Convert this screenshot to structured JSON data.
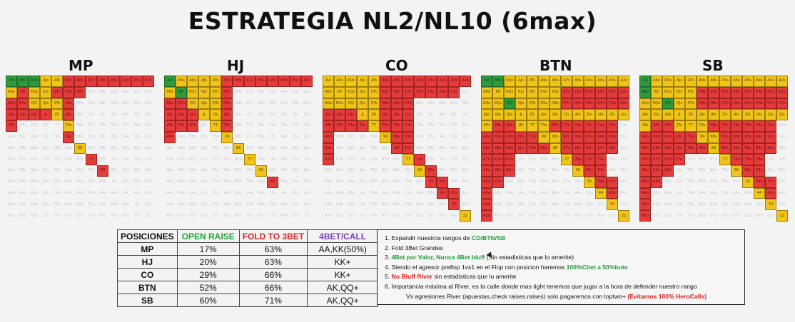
{
  "title": "ESTRATEGIA NL2/NL10 (6max)",
  "ranks": [
    "A",
    "K",
    "Q",
    "J",
    "T",
    "9",
    "8",
    "7",
    "6",
    "5",
    "4",
    "3",
    "2"
  ],
  "colors": {
    "green": "#2e9a3c",
    "yellow": "#f0c419",
    "red": "#e53b3b"
  },
  "charts": [
    {
      "name": "MP",
      "rows": [
        "GGGYYRRRRRRRR",
        "YRYYRRR......",
        "RRYYYR.......",
        "RRRRYR.......",
        "R....Y.......",
        ".....R.......",
        "......Y......",
        ".......R.....",
        "........R....",
        ".............",
        ".............",
        ".............",
        "............."
      ]
    },
    {
      "name": "HJ",
      "rows": [
        "GYYYYRRRRRRRR",
        "YGYYYR.......",
        "RRYYYR.......",
        "RRRYYR.......",
        "RRR.YR.......",
        "R....Y.......",
        "......Y......",
        ".......Y.....",
        "........Y....",
        ".........R...",
        ".............",
        ".............",
        "............."
      ]
    },
    {
      "name": "CO",
      "rows": [
        "YYYYYRRRRRRRR",
        "YYYYYRRRRRRR.",
        "YYYYYRRR.....",
        "RRRYYRRR.....",
        "RRRRYRRR.....",
        "R....YRR.....",
        "R.....RR.....",
        "R......YR....",
        "........YR...",
        ".........RR..",
        "..........RR.",
        "...........R.",
        "............Y"
      ]
    },
    {
      "name": "BTN",
      "rows": [
        "GGYYYYYYYYYYY",
        "YYYYYYYRRRRRR",
        "YYGYYYYRRRRRR",
        "YYYYYYYYYYYYY",
        "YRRYYYRRRRRR.",
        "RRRRRYYRRRRR.",
        "RRRRRRYRRRRR.",
        "RRR....YRRR..",
        "RRR.....YRR..",
        "RR.......YRR.",
        "R.........YR.",
        "R..........Y.",
        "R...........Y"
      ]
    },
    {
      "name": "SB",
      "rows": [
        "GYYYYYYYYYYYY",
        "GYYYYRRRRRRRR",
        "YYGYYRRRRRRRR",
        "YYYYYYYYYYYYY",
        "YRRYYYRRRRRR.",
        "RRRRRYYRRRRR.",
        "RRRRRRYRRRRR.",
        "RRRR...YRRR..",
        "RRR.....YRR..",
        "RR.......YRR.",
        "R.........YR.",
        "R..........Y.",
        "R...........Y"
      ]
    }
  ],
  "table": {
    "headers": [
      "POSICIONES",
      "OPEN RAISE",
      "FOLD TO 3BET",
      "4BET/CALL"
    ],
    "rows": [
      [
        "MP",
        "17%",
        "63%",
        "AA,KK(50%)"
      ],
      [
        "HJ",
        "20%",
        "63%",
        "KK+"
      ],
      [
        "CO",
        "29%",
        "66%",
        "KK+"
      ],
      [
        "BTN",
        "52%",
        "66%",
        "AK,QQ+"
      ],
      [
        "SB",
        "60%",
        "71%",
        "AK,QQ+"
      ]
    ]
  },
  "notes": {
    "n1_a": "1. Expandir nuestros rangos de ",
    "n1_b": "CO/BTN/SB",
    "n2": "2. Fold 3Bet Grandes",
    "n3_a": "3. ",
    "n3_b": "4Bet por Valor, Nunca 4Bet bluff",
    "n3_c": " (Sin estadisticas que lo amerite)",
    "n4_a": "4. Siendo el agresor preflop 1vs1 en el Flop con posicion haremos ",
    "n4_b": "100%Cbet a 50%bote",
    "n5_a": "5. ",
    "n5_b": "No Bluff River",
    "n5_c": " sin estadisticas que lo amerite",
    "n6": "6. Importancia máxima al River, es la calle donde mas tight tenemos que jugar a la hora de defender nuestro rango",
    "n7_a": "Vs agresiones River (apuestas,check raises,raises) solo pagaremos con toptwo+ ",
    "n7_b": "(Evitamos 100% HeroCalls)"
  }
}
